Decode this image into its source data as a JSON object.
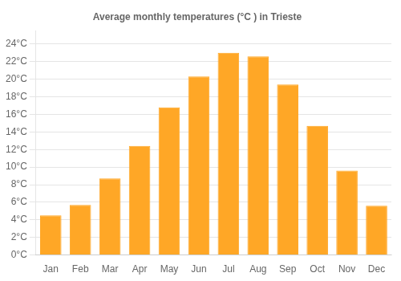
{
  "chart_data": {
    "type": "bar",
    "title": "Average monthly temperatures (°C ) in Trieste",
    "categories": [
      "Jan",
      "Feb",
      "Mar",
      "Apr",
      "May",
      "Jun",
      "Jul",
      "Aug",
      "Sep",
      "Oct",
      "Nov",
      "Dec"
    ],
    "values": [
      4.5,
      5.7,
      8.7,
      12.4,
      16.8,
      20.3,
      23.0,
      22.6,
      19.4,
      14.7,
      9.6,
      5.6
    ],
    "color": "#FFA726",
    "ylim": [
      0,
      25.5
    ],
    "yticks": [
      {
        "value": 0,
        "label": "0°C"
      },
      {
        "value": 2,
        "label": "2°C"
      },
      {
        "value": 4,
        "label": "4°C"
      },
      {
        "value": 6,
        "label": "6°C"
      },
      {
        "value": 8,
        "label": "8°C"
      },
      {
        "value": 10,
        "label": "10°C"
      },
      {
        "value": 12,
        "label": "12°C"
      },
      {
        "value": 14,
        "label": "14°C"
      },
      {
        "value": 16,
        "label": "16°C"
      },
      {
        "value": 18,
        "label": "18°C"
      },
      {
        "value": 20,
        "label": "20°C"
      },
      {
        "value": 22,
        "label": "22°C"
      },
      {
        "value": 24,
        "label": "24°C"
      }
    ],
    "grid": true
  }
}
